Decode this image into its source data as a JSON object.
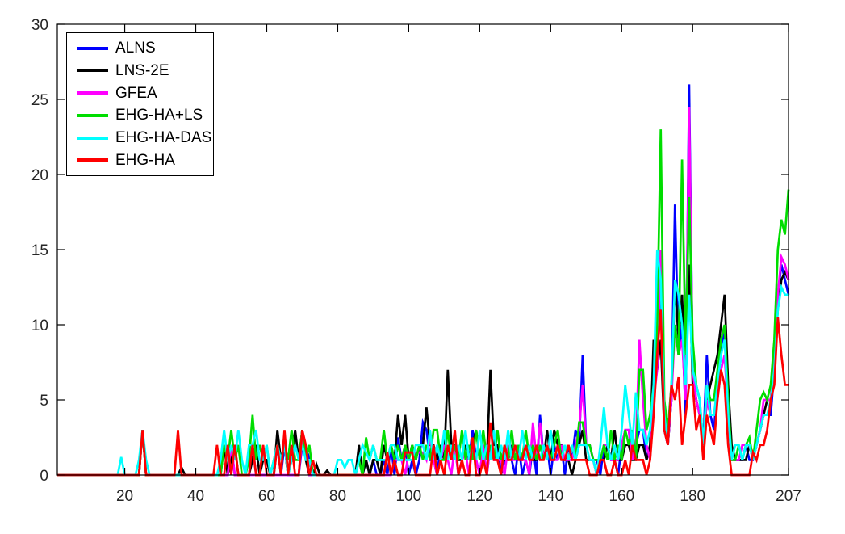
{
  "chart_data": {
    "type": "line",
    "title": "",
    "xlabel": "",
    "ylabel": "",
    "xlim": [
      1,
      207
    ],
    "ylim": [
      0,
      30
    ],
    "xticks": [
      20,
      40,
      60,
      80,
      100,
      120,
      140,
      160,
      180,
      207
    ],
    "yticks": [
      0,
      5,
      10,
      15,
      20,
      25,
      30
    ],
    "grid": false,
    "legend_position": "top-left",
    "x_start": 1,
    "x_step": 1,
    "series": [
      {
        "name": "ALNS",
        "color": "#0000ff",
        "values": [
          0,
          0,
          0,
          0,
          0,
          0,
          0,
          0,
          0,
          0,
          0,
          0,
          0,
          0,
          0,
          0,
          0,
          0,
          0,
          0,
          0,
          0,
          0,
          0,
          3,
          0,
          0,
          0,
          0,
          0,
          0,
          0,
          0,
          0,
          0,
          0,
          0,
          0,
          0,
          0,
          0,
          0,
          0,
          0,
          0,
          0,
          0,
          0,
          0,
          2,
          0,
          0,
          0,
          0,
          0,
          2,
          0,
          0,
          0,
          0,
          0,
          0,
          2,
          0,
          2,
          0,
          0,
          0,
          0,
          2,
          2,
          1,
          0,
          0,
          0,
          0,
          0,
          0,
          0,
          0,
          0,
          0,
          0,
          0,
          0,
          1,
          0,
          1,
          0,
          1,
          0,
          0,
          1,
          0,
          2,
          0,
          2.5,
          1,
          2,
          0,
          1,
          0,
          1,
          3.5,
          3,
          1,
          1,
          0,
          2,
          1,
          2,
          1,
          2,
          0,
          1,
          2,
          1,
          3,
          1,
          0,
          2,
          0,
          2,
          1,
          2,
          0,
          1,
          2,
          1,
          0,
          2,
          0,
          1,
          0,
          2,
          0,
          4,
          1,
          2,
          0,
          2,
          1,
          2,
          0,
          2,
          1,
          3,
          2,
          8,
          2,
          2,
          1,
          1,
          0,
          2,
          2,
          1,
          1,
          0,
          2,
          3,
          3,
          1,
          2,
          3,
          3,
          1,
          2,
          5,
          8,
          12,
          3,
          2,
          5,
          18,
          8,
          10,
          4,
          26,
          7,
          5,
          4,
          2,
          8,
          4,
          3,
          6,
          8,
          10,
          4,
          1,
          1,
          1,
          1,
          2,
          1,
          1,
          2,
          3,
          4,
          4,
          4,
          7,
          12,
          14,
          13,
          12
        ]
      },
      {
        "name": "LNS-2E",
        "color": "#000000",
        "values": [
          0,
          0,
          0,
          0,
          0,
          0,
          0,
          0,
          0,
          0,
          0,
          0,
          0,
          0,
          0,
          0,
          0,
          0,
          0,
          0,
          0,
          0,
          0,
          0,
          3,
          0,
          0,
          0,
          0,
          0,
          0,
          0,
          0,
          0,
          0,
          0.5,
          0,
          0,
          0,
          0,
          0,
          0,
          0,
          0,
          0,
          0,
          0,
          2,
          0,
          1,
          2,
          0,
          0,
          0,
          0,
          1,
          2,
          0,
          1,
          1,
          0,
          0,
          3,
          1,
          2,
          0,
          1,
          3,
          1,
          3,
          1,
          0,
          0,
          0.7,
          0,
          0,
          0.3,
          0,
          0,
          0,
          0,
          0,
          0,
          0,
          0,
          2,
          0,
          1,
          0,
          1,
          1,
          0,
          2,
          1,
          2,
          1,
          4,
          2,
          4,
          1,
          2,
          1,
          2,
          2,
          4.5,
          2,
          2,
          1,
          2,
          1,
          7,
          2,
          2,
          1,
          1,
          2,
          1,
          2,
          3,
          1,
          2,
          1,
          7,
          2,
          2,
          1,
          1,
          1,
          2,
          1,
          2,
          1,
          2,
          1,
          1,
          1,
          2,
          1,
          3,
          1,
          3,
          2,
          2,
          1,
          1,
          0,
          1,
          2,
          3,
          1,
          1,
          1,
          0,
          1,
          1,
          2,
          1,
          3,
          1,
          1,
          2,
          2,
          1,
          1,
          2,
          2,
          1,
          2,
          9,
          7,
          9,
          3,
          2,
          5,
          13,
          9,
          12,
          6,
          14,
          6,
          5,
          4,
          2,
          5,
          6,
          7,
          8,
          10,
          12,
          6,
          2,
          1,
          1,
          1,
          1,
          2,
          1,
          2,
          3,
          4,
          5,
          5,
          8,
          11,
          13,
          13.5,
          13
        ]
      },
      {
        "name": "GFEA",
        "color": "#ff00ff",
        "values": [
          0,
          0,
          0,
          0,
          0,
          0,
          0,
          0,
          0,
          0,
          0,
          0,
          0,
          0,
          0,
          0,
          0,
          0,
          0,
          0,
          0,
          0,
          0,
          0,
          3,
          0,
          0,
          0,
          0,
          0,
          0,
          0,
          0,
          0,
          0,
          0,
          0,
          0,
          0,
          0,
          0,
          0,
          0,
          0,
          0,
          0,
          0,
          0,
          0,
          2,
          0,
          0,
          0,
          0,
          0,
          0,
          0,
          0,
          0,
          0,
          0,
          0,
          0,
          0,
          0,
          0,
          0,
          0,
          0,
          2.5,
          2,
          0,
          0,
          0,
          0,
          0,
          0,
          0,
          0,
          0,
          0,
          0,
          0,
          0,
          0,
          0,
          0,
          0,
          0,
          0,
          0,
          0,
          0,
          0,
          0,
          1,
          1,
          1,
          0,
          1.5,
          1.5,
          1.5,
          1.5,
          1.5,
          1,
          2.5,
          1,
          0,
          1,
          2,
          1,
          0,
          2,
          0,
          1,
          1.5,
          0,
          2,
          1,
          0,
          2,
          0,
          2,
          1,
          1,
          1,
          0,
          2,
          1,
          1,
          2,
          1,
          1,
          0,
          3.5,
          1,
          3.5,
          1,
          2,
          1,
          1,
          1,
          2,
          1,
          1,
          1,
          2,
          3,
          6,
          2,
          2,
          1,
          0,
          1,
          2,
          2,
          1,
          1,
          1,
          2,
          3,
          3,
          1,
          2,
          9,
          5,
          2,
          1,
          5,
          7,
          15,
          3,
          2,
          5,
          10,
          8,
          9,
          5,
          24.5,
          7,
          5,
          4,
          2,
          5,
          4,
          4,
          5,
          7,
          8,
          4,
          1,
          1,
          1,
          2,
          2,
          2,
          1,
          2,
          3,
          5,
          5,
          5,
          8,
          12,
          14.5,
          14,
          13
        ]
      },
      {
        "name": "EHG-HA+LS",
        "color": "#00dd00",
        "values": [
          0,
          0,
          0,
          0,
          0,
          0,
          0,
          0,
          0,
          0,
          0,
          0,
          0,
          0,
          0,
          0,
          0,
          0,
          0,
          0,
          0,
          0,
          0,
          0,
          3,
          0,
          0,
          0,
          0,
          0,
          0,
          0,
          0,
          0,
          0,
          0,
          0,
          0,
          0,
          0,
          0,
          0,
          0,
          0,
          0,
          0,
          0,
          2,
          1,
          3,
          1,
          2,
          0,
          0,
          1,
          4,
          1,
          2,
          1,
          2,
          0,
          1,
          2,
          1,
          2,
          1,
          3,
          1,
          1,
          3,
          1,
          2,
          0,
          0,
          0,
          0,
          0,
          0,
          0,
          0,
          0,
          0,
          0,
          0,
          0,
          1,
          0,
          2.5,
          1,
          2,
          1,
          1,
          3,
          1,
          2,
          1,
          2,
          1,
          2,
          1,
          2,
          1,
          2,
          1,
          2,
          1,
          3,
          3,
          1,
          1,
          3,
          1,
          2,
          1,
          3,
          1,
          2,
          1,
          3,
          1,
          3,
          1,
          2,
          1,
          3,
          1,
          2,
          1,
          3,
          1,
          2,
          1,
          3,
          1,
          2,
          1,
          2,
          1,
          2,
          1,
          2,
          3,
          1,
          2,
          1,
          2,
          1,
          3.5,
          3.5,
          2,
          2,
          1,
          1,
          1,
          2,
          1,
          3,
          1,
          2,
          1,
          3,
          2,
          3,
          1,
          7,
          7,
          3,
          4,
          6,
          10,
          23,
          5,
          3,
          6,
          10,
          8,
          21,
          8,
          18.5,
          9,
          6,
          5,
          2,
          6,
          5,
          5,
          7,
          9,
          10,
          5,
          1,
          1,
          2,
          1,
          2,
          2.5,
          1,
          3,
          5,
          5.5,
          5,
          6,
          9,
          15,
          17,
          16,
          19
        ]
      },
      {
        "name": "EHG-HA-DAS",
        "color": "#00ffff",
        "values": [
          0,
          0,
          0,
          0,
          0,
          0,
          0,
          0,
          0,
          0,
          0,
          0,
          0,
          0,
          0,
          0,
          0,
          0,
          1.2,
          0,
          0,
          0,
          0,
          1,
          3,
          1,
          0,
          0,
          0,
          0,
          0,
          0,
          0,
          0,
          0,
          0,
          0,
          0,
          0,
          0,
          0,
          0,
          0,
          0,
          0,
          0,
          1,
          3,
          1,
          2,
          1,
          3,
          1,
          0,
          2,
          2,
          3,
          1,
          1,
          2,
          0,
          1,
          2,
          1,
          2,
          0,
          1,
          2,
          1,
          2,
          1,
          1,
          0,
          0,
          0,
          0,
          0,
          0,
          0,
          1,
          1,
          0.5,
          1,
          1,
          0,
          1,
          2,
          1.5,
          1,
          2,
          1,
          1,
          1,
          1,
          2,
          2,
          1,
          1,
          1,
          1,
          1,
          2,
          2,
          2,
          1,
          3,
          1,
          2,
          1,
          3,
          1,
          2,
          1,
          2,
          1,
          3,
          1,
          2,
          1,
          3,
          1,
          2,
          1,
          3,
          1,
          2,
          1,
          3,
          1,
          2,
          1,
          3,
          1,
          2,
          1,
          2,
          1,
          2,
          1,
          3,
          1,
          2,
          1,
          2,
          1,
          2,
          1,
          2,
          2,
          2,
          1,
          1,
          0,
          2,
          4.5,
          2,
          1,
          2,
          1,
          3,
          6,
          4,
          2,
          5.5,
          3,
          3,
          2,
          3,
          6,
          15,
          13,
          4,
          2,
          6,
          13,
          12,
          10,
          6,
          12,
          7,
          6,
          5,
          2,
          6,
          4,
          4,
          6,
          8,
          9,
          4,
          1,
          2,
          2,
          1,
          2,
          2,
          1,
          2,
          3,
          4,
          4,
          5,
          7,
          11,
          12.5,
          12,
          12
        ]
      },
      {
        "name": "EHG-HA",
        "color": "#ff0000",
        "values": [
          0,
          0,
          0,
          0,
          0,
          0,
          0,
          0,
          0,
          0,
          0,
          0,
          0,
          0,
          0,
          0,
          0,
          0,
          0,
          0,
          0,
          0,
          0,
          0,
          3,
          0,
          0,
          0,
          0,
          0,
          0,
          0,
          0,
          0,
          3,
          0,
          0,
          0,
          0,
          0,
          0,
          0,
          0,
          0,
          0,
          2,
          0,
          0,
          2,
          0,
          2,
          0,
          0,
          0,
          0,
          2,
          0,
          0,
          2,
          0,
          0,
          0,
          2,
          0,
          3,
          0,
          2,
          0,
          0,
          3,
          2,
          0,
          1,
          0,
          0,
          0,
          0,
          0,
          0,
          0,
          0,
          0,
          0,
          0,
          0,
          0,
          0,
          0,
          0,
          0,
          0,
          0,
          0,
          1.5,
          0,
          1,
          0,
          0,
          1.5,
          1.5,
          1.5,
          0,
          0,
          0,
          0,
          0,
          2,
          0,
          1,
          0,
          2,
          1,
          3,
          0,
          1,
          0,
          0,
          2.5,
          0,
          0,
          1,
          0,
          3.5,
          1,
          1,
          0,
          2,
          1,
          1,
          2,
          1,
          1,
          2,
          1,
          1,
          2,
          1,
          1,
          2,
          1,
          1,
          2,
          1,
          1,
          2,
          1,
          1,
          1,
          1,
          1,
          0,
          0,
          0,
          1,
          1,
          0,
          0,
          1,
          0,
          0,
          1,
          0,
          2,
          1,
          1,
          1,
          0,
          1,
          4,
          8,
          11,
          3,
          2,
          6,
          5,
          6.5,
          2,
          4,
          6,
          6,
          3,
          4,
          1,
          4,
          3,
          2,
          5,
          7,
          6,
          2,
          0,
          0,
          0,
          0,
          0,
          0,
          1.5,
          1,
          2,
          2,
          3,
          5,
          6,
          10.5,
          8,
          6,
          6
        ]
      }
    ]
  },
  "legend": {
    "items": [
      {
        "label": "ALNS"
      },
      {
        "label": "LNS-2E"
      },
      {
        "label": "GFEA"
      },
      {
        "label": "EHG-HA+LS"
      },
      {
        "label": "EHG-HA-DAS"
      },
      {
        "label": "EHG-HA"
      }
    ]
  }
}
